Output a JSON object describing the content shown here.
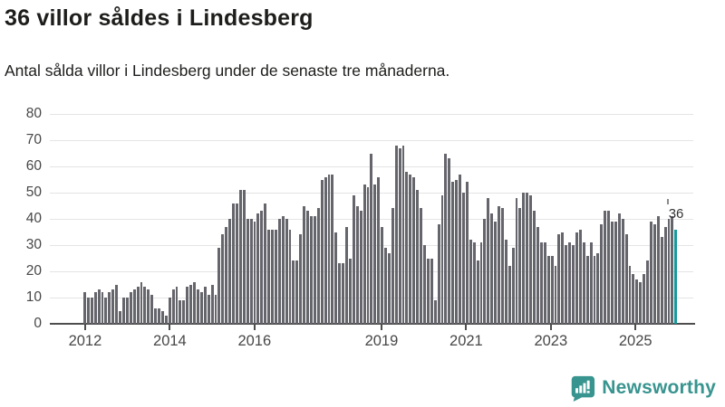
{
  "title": "36 villor såldes i Lindesberg",
  "subtitle": "Antal sålda villor i Lindesberg under de senaste tre månaderna.",
  "annotation": {
    "label": "36"
  },
  "branding": {
    "name": "Newsworthy"
  },
  "colors": {
    "bar": "#65656c",
    "highlight": "#17999b",
    "brand": "#38948f",
    "gridline": "#e4e4e4",
    "axis": "#4d4d4d"
  },
  "chart_data": {
    "type": "bar",
    "title": "36 villor såldes i Lindesberg",
    "subtitle": "Antal sålda villor i Lindesberg under de senaste tre månaderna.",
    "ylabel": "",
    "xlabel": "",
    "ylim": [
      0,
      80
    ],
    "yticks": [
      0,
      10,
      20,
      30,
      40,
      50,
      60,
      70,
      80
    ],
    "grid": "horizontal",
    "x_ticks": [
      {
        "label": "2012",
        "index": 0
      },
      {
        "label": "2014",
        "index": 24
      },
      {
        "label": "2016",
        "index": 48
      },
      {
        "label": "2019",
        "index": 84
      },
      {
        "label": "2021",
        "index": 108
      },
      {
        "label": "2023",
        "index": 132
      },
      {
        "label": "2025",
        "index": 156
      }
    ],
    "period": "monthly, rolling 3-month totals, 2012–2025",
    "values": [
      12,
      10,
      10,
      12,
      13,
      12,
      10,
      12,
      13,
      15,
      5,
      10,
      10,
      12,
      13,
      14,
      16,
      14,
      13,
      11,
      6,
      6,
      5,
      3,
      10,
      13,
      14,
      9,
      9,
      14,
      15,
      16,
      13,
      12,
      14,
      11,
      15,
      11,
      29,
      34,
      37,
      40,
      46,
      46,
      51,
      51,
      40,
      40,
      39,
      42,
      43,
      46,
      36,
      36,
      36,
      40,
      41,
      40,
      36,
      24,
      24,
      34,
      45,
      43,
      41,
      41,
      44,
      55,
      56,
      57,
      57,
      35,
      23,
      23,
      37,
      25,
      49,
      45,
      43,
      53,
      52,
      65,
      53,
      56,
      37,
      29,
      27,
      44,
      68,
      67,
      68,
      58,
      57,
      56,
      51,
      44,
      30,
      25,
      25,
      9,
      38,
      49,
      65,
      63,
      54,
      55,
      57,
      50,
      54,
      32,
      31,
      24,
      31,
      40,
      48,
      42,
      39,
      45,
      44,
      32,
      22,
      29,
      48,
      44,
      50,
      50,
      49,
      43,
      37,
      31,
      31,
      26,
      26,
      22,
      34,
      35,
      30,
      31,
      30,
      35,
      36,
      31,
      26,
      31,
      26,
      27,
      38,
      43,
      43,
      39,
      39,
      42,
      40,
      34,
      22,
      19,
      17,
      16,
      19,
      24,
      39,
      38,
      41,
      33,
      37,
      40,
      41,
      36
    ],
    "highlight": {
      "index": 167,
      "value": 36,
      "label": "36"
    }
  }
}
